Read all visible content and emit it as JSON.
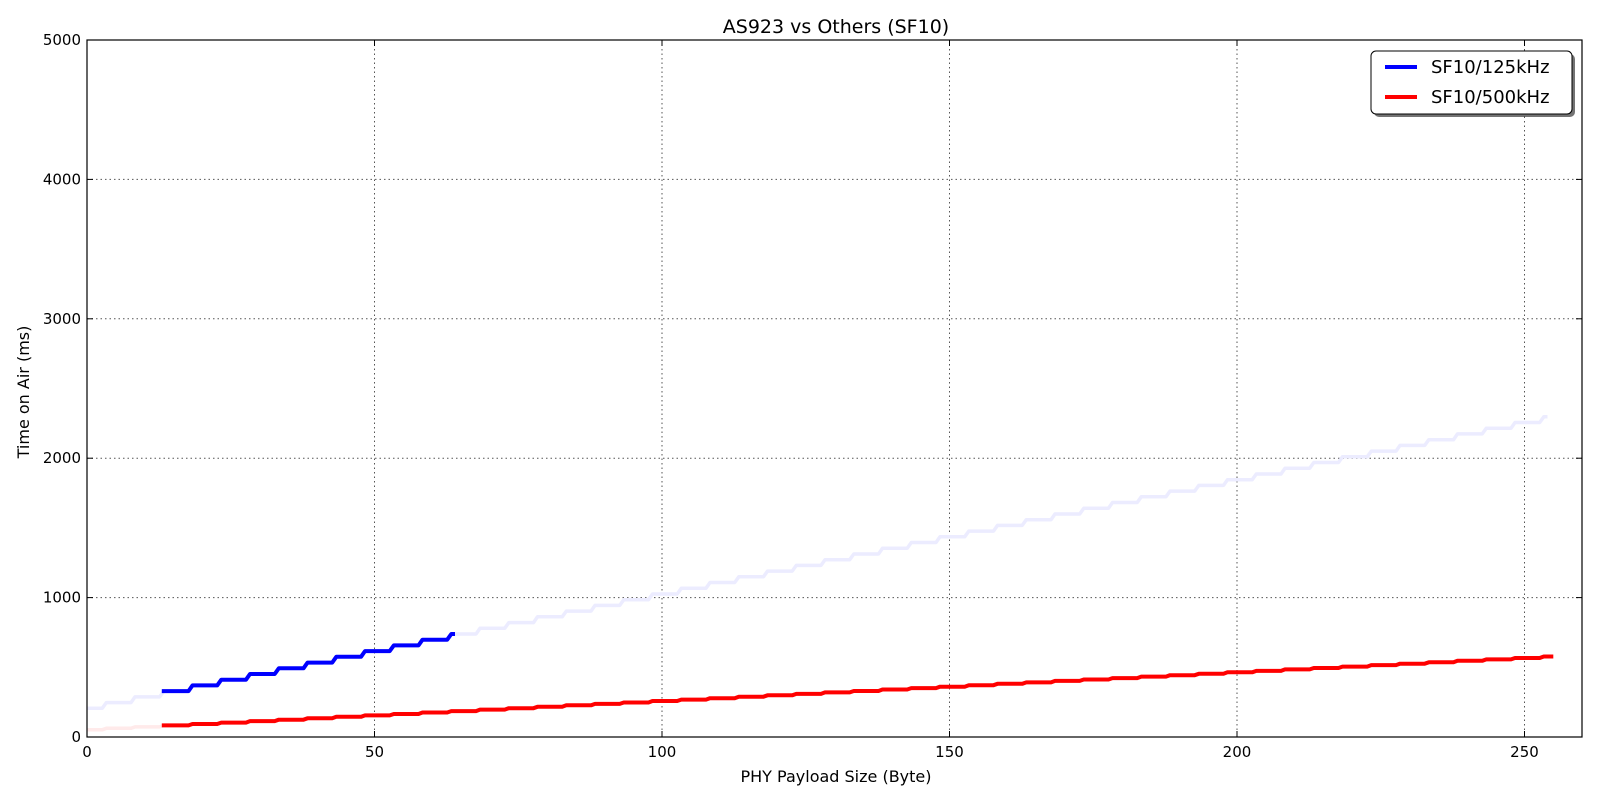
{
  "chart_data": {
    "type": "line",
    "title": "AS923 vs Others (SF10)",
    "xlabel": "PHY Payload Size (Byte)",
    "ylabel": "Time on Air (ms)",
    "xlim": [
      0,
      260
    ],
    "ylim": [
      0,
      5000
    ],
    "xticks": [
      0,
      50,
      100,
      150,
      200,
      250
    ],
    "yticks": [
      0,
      1000,
      2000,
      3000,
      4000,
      5000
    ],
    "grid": true,
    "legend_position": "top-right",
    "step_size_bytes": 5,
    "series": [
      {
        "name": "SF10/125kHz",
        "color": "#0000ff",
        "x_range": [
          13,
          64
        ],
        "base_ms": 206,
        "step_ms": 41,
        "legend": true
      },
      {
        "name": "SF10/500kHz",
        "color": "#ff0000",
        "x_range": [
          13,
          255
        ],
        "base_ms": 52,
        "step_ms": 10.3,
        "legend": true
      },
      {
        "name": "",
        "color": "#ececff",
        "x_range": [
          0,
          254
        ],
        "base_ms": 206,
        "step_ms": 41,
        "legend": false
      },
      {
        "name": "",
        "color": "#ffeaea",
        "x_range": [
          0,
          13
        ],
        "base_ms": 52,
        "step_ms": 10.3,
        "legend": false
      }
    ]
  }
}
